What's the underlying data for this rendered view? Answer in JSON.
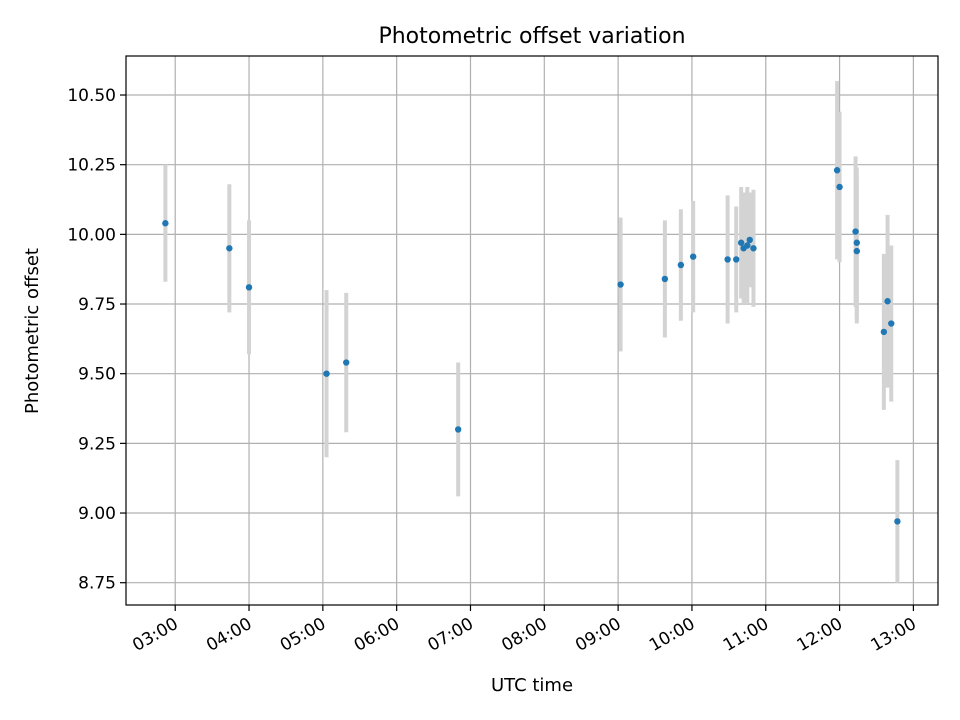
{
  "chart_data": {
    "type": "scatter",
    "title": "Photometric offset variation",
    "xlabel": "UTC time",
    "ylabel": "Photometric offset",
    "x_ticks": [
      "03:00",
      "04:00",
      "05:00",
      "06:00",
      "07:00",
      "08:00",
      "09:00",
      "10:00",
      "11:00",
      "12:00",
      "13:00"
    ],
    "y_ticks": [
      "8.75",
      "9.00",
      "9.25",
      "9.50",
      "9.75",
      "10.00",
      "10.25",
      "10.50"
    ],
    "xlim": [
      "02:20",
      "13:20"
    ],
    "ylim": [
      8.67,
      10.64
    ],
    "grid": true,
    "point_color": "#1f77b4",
    "errorbar_color": "#d3d3d3",
    "points": [
      {
        "x": "02:52",
        "y": 10.04,
        "err": 0.21
      },
      {
        "x": "03:44",
        "y": 9.95,
        "err": 0.23
      },
      {
        "x": "04:00",
        "y": 9.81,
        "err": 0.24
      },
      {
        "x": "05:03",
        "y": 9.5,
        "err": 0.3
      },
      {
        "x": "05:19",
        "y": 9.54,
        "err": 0.25
      },
      {
        "x": "06:50",
        "y": 9.3,
        "err": 0.24
      },
      {
        "x": "09:02",
        "y": 9.82,
        "err": 0.24
      },
      {
        "x": "09:38",
        "y": 9.84,
        "err": 0.21
      },
      {
        "x": "09:51",
        "y": 9.89,
        "err": 0.2
      },
      {
        "x": "10:01",
        "y": 9.92,
        "err": 0.2
      },
      {
        "x": "10:29",
        "y": 9.91,
        "err": 0.23
      },
      {
        "x": "10:36",
        "y": 9.91,
        "err": 0.19
      },
      {
        "x": "10:40",
        "y": 9.97,
        "err": 0.2
      },
      {
        "x": "10:42",
        "y": 9.95,
        "err": 0.2
      },
      {
        "x": "10:45",
        "y": 9.96,
        "err": 0.21
      },
      {
        "x": "10:47",
        "y": 9.98,
        "err": 0.17
      },
      {
        "x": "10:50",
        "y": 9.95,
        "err": 0.21
      },
      {
        "x": "11:58",
        "y": 10.23,
        "err": 0.32
      },
      {
        "x": "12:00",
        "y": 10.17,
        "err": 0.27
      },
      {
        "x": "12:13",
        "y": 10.01,
        "err": 0.27
      },
      {
        "x": "12:14",
        "y": 9.97,
        "err": 0.27
      },
      {
        "x": "12:14",
        "y": 9.94,
        "err": 0.26
      },
      {
        "x": "12:36",
        "y": 9.65,
        "err": 0.28
      },
      {
        "x": "12:39",
        "y": 9.76,
        "err": 0.31
      },
      {
        "x": "12:42",
        "y": 9.68,
        "err": 0.28
      },
      {
        "x": "12:47",
        "y": 8.97,
        "err": 0.22
      }
    ]
  }
}
